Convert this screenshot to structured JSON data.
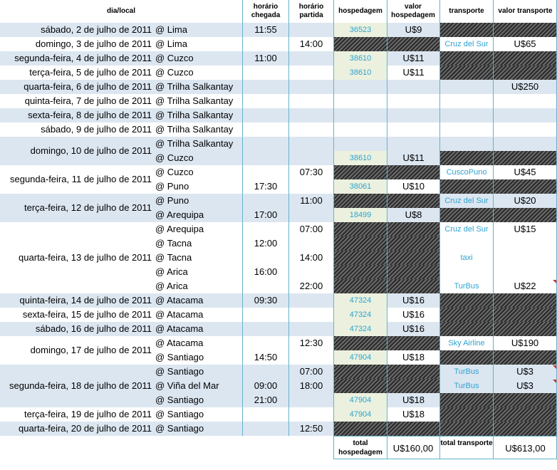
{
  "headers": {
    "date_local": "dia/local",
    "arrival_time": "horário chegada",
    "departure_time": "horário partida",
    "lodging": "hospedagem",
    "lodging_value": "valor hospedagem",
    "transport": "transporte",
    "transport_value": "valor transporte"
  },
  "rows": [
    {
      "date": "sábado, 2 de julho de 2011",
      "place": "@ Lima",
      "arrival": "11:55",
      "departure": "",
      "lodging": "36523",
      "lodging_value": "U$9",
      "transport": "",
      "transport_value": "",
      "band": "blue",
      "lodging_hatch": false,
      "transport_hatch": true
    },
    {
      "date": "domingo, 3 de julho de 2011",
      "place": "@ Lima",
      "arrival": "",
      "departure": "14:00",
      "lodging": "",
      "lodging_value": "",
      "transport": "Cruz del Sur",
      "transport_value": "U$65",
      "band": "white",
      "lodging_hatch": true,
      "transport_hatch": false
    },
    {
      "date": "segunda-feira, 4 de julho de 2011",
      "place": "@ Cuzco",
      "arrival": "11:00",
      "departure": "",
      "lodging": "38610",
      "lodging_value": "U$11",
      "transport": "",
      "transport_value": "",
      "band": "blue",
      "lodging_hatch": false,
      "transport_hatch": true
    },
    {
      "date": "terça-feira, 5 de julho de 2011",
      "place": "@ Cuzco",
      "arrival": "",
      "departure": "",
      "lodging": "38610",
      "lodging_value": "U$11",
      "transport": "",
      "transport_value": "",
      "band": "white",
      "lodging_hatch": false,
      "transport_hatch": true
    },
    {
      "date": "quarta-feira, 6 de julho de 2011",
      "place": "@ Trilha Salkantay",
      "arrival": "",
      "departure": "",
      "lodging": "",
      "lodging_value": "",
      "transport": "",
      "transport_value": "U$250",
      "band": "blue",
      "lodging_hatch": false,
      "transport_hatch": false
    },
    {
      "date": "quinta-feira, 7 de julho de 2011",
      "place": "@ Trilha Salkantay",
      "arrival": "",
      "departure": "",
      "lodging": "",
      "lodging_value": "",
      "transport": "",
      "transport_value": "",
      "band": "white",
      "lodging_hatch": false,
      "transport_hatch": false
    },
    {
      "date": "sexta-feira, 8 de julho de 2011",
      "place": "@ Trilha Salkantay",
      "arrival": "",
      "departure": "",
      "lodging": "",
      "lodging_value": "",
      "transport": "",
      "transport_value": "",
      "band": "blue",
      "lodging_hatch": false,
      "transport_hatch": false
    },
    {
      "date": "sábado, 9 de julho de 2011",
      "place": "@ Trilha Salkantay",
      "arrival": "",
      "departure": "",
      "lodging": "",
      "lodging_value": "",
      "transport": "",
      "transport_value": "",
      "band": "white",
      "lodging_hatch": false,
      "transport_hatch": false
    },
    {
      "date": "domingo, 10 de julho de 2011",
      "place": "@ Trilha Salkantay",
      "arrival": "",
      "departure": "",
      "lodging": "",
      "lodging_value": "",
      "transport": "",
      "transport_value": "",
      "band": "blue",
      "lodging_hatch": false,
      "transport_hatch": false,
      "date_span": 2
    },
    {
      "date": "",
      "place": "@ Cuzco",
      "arrival": "",
      "departure": "",
      "lodging": "38610",
      "lodging_value": "U$11",
      "transport": "",
      "transport_value": "",
      "band": "blue",
      "lodging_hatch": false,
      "transport_hatch": true
    },
    {
      "date": "segunda-feira, 11 de julho de 2011",
      "place": "@ Cuzco",
      "arrival": "",
      "departure": "07:30",
      "lodging": "",
      "lodging_value": "",
      "transport": "CuscoPuno",
      "transport_value": "U$45",
      "band": "white",
      "lodging_hatch": true,
      "transport_hatch": false,
      "date_span": 2
    },
    {
      "date": "",
      "place": "@ Puno",
      "arrival": "17:30",
      "departure": "",
      "lodging": "38061",
      "lodging_value": "U$10",
      "transport": "",
      "transport_value": "",
      "band": "white",
      "lodging_hatch": false,
      "transport_hatch": true
    },
    {
      "date": "terça-feira, 12 de julho de 2011",
      "place": "@ Puno",
      "arrival": "",
      "departure": "11:00",
      "lodging": "",
      "lodging_value": "",
      "transport": "Cruz del Sur",
      "transport_value": "U$20",
      "band": "blue",
      "lodging_hatch": true,
      "transport_hatch": false,
      "date_span": 2
    },
    {
      "date": "",
      "place": "@ Arequipa",
      "arrival": "17:00",
      "departure": "",
      "lodging": "18499",
      "lodging_value": "U$8",
      "transport": "",
      "transport_value": "",
      "band": "blue",
      "lodging_hatch": false,
      "transport_hatch": true
    },
    {
      "date": "quarta-feira, 13 de julho de 2011",
      "place": "@ Arequipa",
      "arrival": "",
      "departure": "07:00",
      "lodging": "",
      "lodging_value": "",
      "transport": "Cruz del Sur",
      "transport_value": "U$15",
      "band": "white",
      "lodging_hatch": true,
      "transport_hatch": false,
      "date_span": 5
    },
    {
      "date": "",
      "place": "@ Tacna",
      "arrival": "12:00",
      "departure": "",
      "lodging": "",
      "lodging_value": "",
      "transport": "",
      "transport_value": "",
      "band": "white",
      "lodging_hatch": true,
      "transport_hatch": false
    },
    {
      "date": "",
      "place": "@ Tacna",
      "arrival": "",
      "departure": "14:00",
      "lodging": "",
      "lodging_value": "",
      "transport": "taxi",
      "transport_value": "",
      "band": "white",
      "lodging_hatch": true,
      "transport_hatch": false
    },
    {
      "date": "",
      "place": "@ Arica",
      "arrival": "16:00",
      "departure": "",
      "lodging": "",
      "lodging_value": "",
      "transport": "",
      "transport_value": "",
      "band": "white",
      "lodging_hatch": true,
      "transport_hatch": false
    },
    {
      "date": "",
      "place": "@ Arica",
      "arrival": "",
      "departure": "22:00",
      "lodging": "",
      "lodging_value": "",
      "transport": "TurBus",
      "transport_value": "U$22",
      "band": "white",
      "lodging_hatch": true,
      "transport_hatch": false,
      "note": true
    },
    {
      "date": "quinta-feira, 14 de julho de 2011",
      "place": "@ Atacama",
      "arrival": "09:30",
      "departure": "",
      "lodging": "47324",
      "lodging_value": "U$16",
      "transport": "",
      "transport_value": "",
      "band": "blue",
      "lodging_hatch": false,
      "transport_hatch": true
    },
    {
      "date": "sexta-feira, 15 de julho de 2011",
      "place": "@ Atacama",
      "arrival": "",
      "departure": "",
      "lodging": "47324",
      "lodging_value": "U$16",
      "transport": "",
      "transport_value": "",
      "band": "white",
      "lodging_hatch": false,
      "transport_hatch": true
    },
    {
      "date": "sábado, 16 de julho de 2011",
      "place": "@ Atacama",
      "arrival": "",
      "departure": "",
      "lodging": "47324",
      "lodging_value": "U$16",
      "transport": "",
      "transport_value": "",
      "band": "blue",
      "lodging_hatch": false,
      "transport_hatch": true
    },
    {
      "date": "domingo, 17 de julho de 2011",
      "place": "@ Atacama",
      "arrival": "",
      "departure": "12:30",
      "lodging": "",
      "lodging_value": "",
      "transport": "Sky Airline",
      "transport_value": "U$190",
      "band": "white",
      "lodging_hatch": true,
      "transport_hatch": false,
      "date_span": 2
    },
    {
      "date": "",
      "place": "@ Santiago",
      "arrival": "14:50",
      "departure": "",
      "lodging": "47904",
      "lodging_value": "U$18",
      "transport": "",
      "transport_value": "",
      "band": "white",
      "lodging_hatch": false,
      "transport_hatch": true
    },
    {
      "date": "segunda-feira, 18 de julho de 2011",
      "place": "@ Santiago",
      "arrival": "",
      "departure": "07:00",
      "lodging": "",
      "lodging_value": "",
      "transport": "TurBus",
      "transport_value": "U$3",
      "band": "blue",
      "lodging_hatch": true,
      "transport_hatch": false,
      "date_span": 3,
      "note": true
    },
    {
      "date": "",
      "place": "@ Viña del Mar",
      "arrival": "09:00",
      "departure": "18:00",
      "lodging": "",
      "lodging_value": "",
      "transport": "TurBus",
      "transport_value": "U$3",
      "band": "blue",
      "lodging_hatch": true,
      "transport_hatch": false,
      "note": true
    },
    {
      "date": "",
      "place": "@ Santiago",
      "arrival": "21:00",
      "departure": "",
      "lodging": "47904",
      "lodging_value": "U$18",
      "transport": "",
      "transport_value": "",
      "band": "blue",
      "lodging_hatch": false,
      "transport_hatch": true
    },
    {
      "date": "terça-feira, 19 de julho de 2011",
      "place": "@ Santiago",
      "arrival": "",
      "departure": "",
      "lodging": "47904",
      "lodging_value": "U$18",
      "transport": "",
      "transport_value": "",
      "band": "white",
      "lodging_hatch": false,
      "transport_hatch": true
    },
    {
      "date": "quarta-feira, 20 de julho de 2011",
      "place": "@ Santiago",
      "arrival": "",
      "departure": "12:50",
      "lodging": "",
      "lodging_value": "",
      "transport": "",
      "transport_value": "",
      "band": "blue",
      "lodging_hatch": true,
      "transport_hatch": true
    }
  ],
  "totals": {
    "lodging_label": "total hospedagem",
    "lodging_value": "U$160,00",
    "transport_label": "total transporte",
    "transport_value": "U$613,00"
  },
  "colors": {
    "band_blue": "#dce6f1",
    "band_white": "#ffffff",
    "link": "#2ea3d0",
    "grid_line": "#62b4c8",
    "lodging_cell": "#ebf1de"
  }
}
